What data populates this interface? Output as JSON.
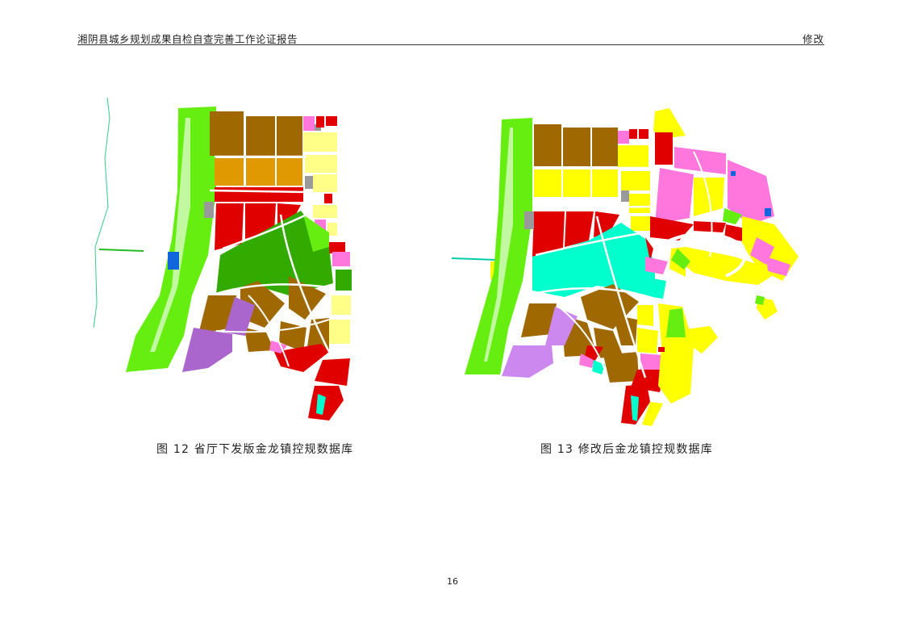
{
  "header": {
    "title": "湘阴县城乡规划成果自检自查完善工作论证报告",
    "tag": "修改"
  },
  "figures": [
    {
      "caption": "图 12  省厅下发版金龙镇控规数据库"
    },
    {
      "caption": "图 13  修改后金龙镇控规数据库"
    }
  ],
  "page_number": "16",
  "colors": {
    "green_space": "#66ee11",
    "dark_green": "#33aa00",
    "brown": "#a06800",
    "orange": "#e09a00",
    "red": "#e00000",
    "yellow": "#ffff00",
    "light_yellow": "#ffff88",
    "pink": "#ff77dd",
    "purple": "#aa66cc",
    "light_purple": "#cc88ee",
    "cyan": "#00ffcc",
    "grey": "#999999",
    "blue": "#1166dd"
  }
}
